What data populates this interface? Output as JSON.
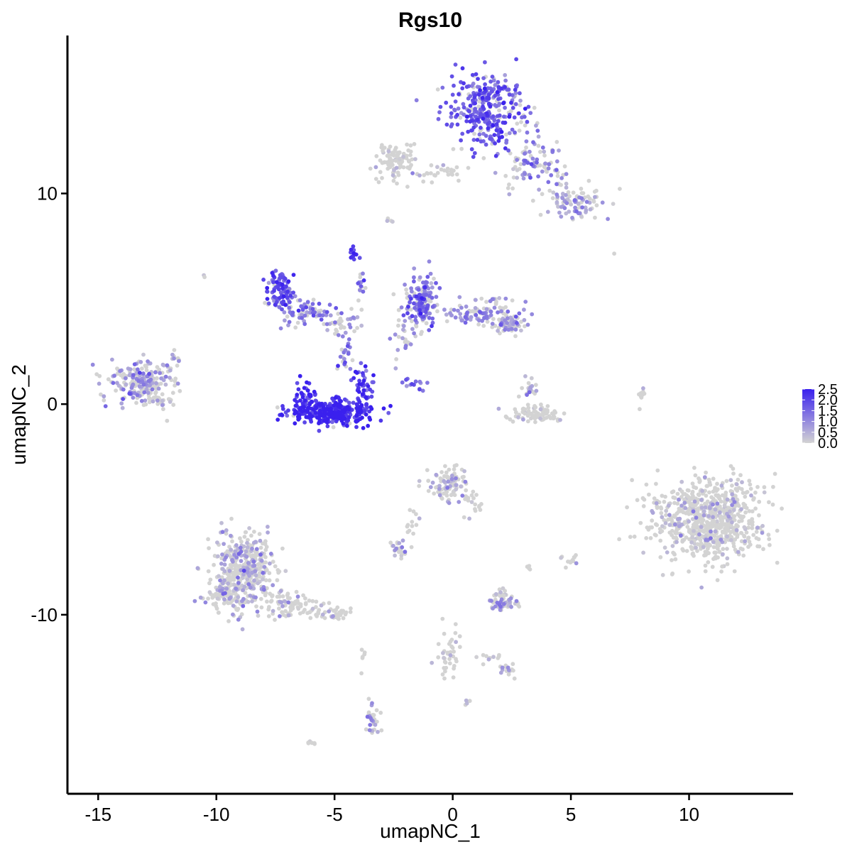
{
  "chart_data": {
    "type": "scatter",
    "title": "Rgs10",
    "xlabel": "umapNC_1",
    "ylabel": "umapNC_2",
    "xlim": [
      -16.3,
      14.4
    ],
    "ylim": [
      -18.5,
      17.5
    ],
    "x_ticks": [
      {
        "value": -15,
        "label": "-15"
      },
      {
        "value": -10,
        "label": "-10"
      },
      {
        "value": -5,
        "label": "-5"
      },
      {
        "value": 0,
        "label": "0"
      },
      {
        "value": 5,
        "label": "5"
      },
      {
        "value": 10,
        "label": "10"
      }
    ],
    "y_ticks": [
      {
        "value": 10,
        "label": "10"
      },
      {
        "value": 0,
        "label": "0"
      },
      {
        "value": -10,
        "label": "-10"
      }
    ],
    "grid": false,
    "legend_position": "right",
    "color_scale": {
      "low_color": "#d3d3d3",
      "high_color": "#3a20ee",
      "min": 0.0,
      "max": 2.5,
      "breaks": [
        {
          "value": 0.0,
          "label": "0.0"
        },
        {
          "value": 0.5,
          "label": "0.5"
        },
        {
          "value": 1.0,
          "label": "1.0"
        },
        {
          "value": 1.5,
          "label": "1.5"
        },
        {
          "value": 2.0,
          "label": "2.0"
        },
        {
          "value": 2.5,
          "label": "2.5"
        }
      ]
    },
    "clusters": [
      {
        "cx": 1.5,
        "cy": 14.0,
        "sx": 1.0,
        "sy": 1.2,
        "n": 320,
        "expr": 1.7
      },
      {
        "cx": 3.5,
        "cy": 11.5,
        "sx": 0.9,
        "sy": 0.8,
        "n": 90,
        "expr": 0.9
      },
      {
        "cx": 5.2,
        "cy": 9.5,
        "sx": 0.8,
        "sy": 0.6,
        "n": 90,
        "expr": 0.6
      },
      {
        "cx": -2.4,
        "cy": 11.5,
        "sx": 0.7,
        "sy": 0.6,
        "n": 90,
        "expr": 0.05
      },
      {
        "cx": -0.5,
        "cy": 11.0,
        "sx": 1.0,
        "sy": 0.3,
        "n": 30,
        "expr": 0.1
      },
      {
        "cx": -7.3,
        "cy": 5.4,
        "sx": 0.4,
        "sy": 0.6,
        "n": 90,
        "expr": 1.8
      },
      {
        "cx": -6.2,
        "cy": 4.4,
        "sx": 0.7,
        "sy": 0.45,
        "n": 70,
        "expr": 1.4
      },
      {
        "cx": -4.6,
        "cy": 3.8,
        "sx": 0.5,
        "sy": 0.3,
        "n": 35,
        "expr": 0.9
      },
      {
        "cx": -4.2,
        "cy": 7.2,
        "sx": 0.15,
        "sy": 0.3,
        "n": 12,
        "expr": 2.0
      },
      {
        "cx": -3.9,
        "cy": 5.6,
        "sx": 0.2,
        "sy": 0.6,
        "n": 15,
        "expr": 1.2
      },
      {
        "cx": -5.1,
        "cy": -0.4,
        "sx": 1.2,
        "sy": 0.4,
        "n": 300,
        "expr": 2.3
      },
      {
        "cx": -6.2,
        "cy": 0.3,
        "sx": 0.3,
        "sy": 0.5,
        "n": 45,
        "expr": 2.2
      },
      {
        "cx": -3.8,
        "cy": 0.9,
        "sx": 0.3,
        "sy": 0.6,
        "n": 45,
        "expr": 2.1
      },
      {
        "cx": -4.6,
        "cy": 2.3,
        "sx": 0.2,
        "sy": 0.5,
        "n": 20,
        "expr": 1.2
      },
      {
        "cx": -1.3,
        "cy": 4.9,
        "sx": 0.5,
        "sy": 0.9,
        "n": 170,
        "expr": 1.3
      },
      {
        "cx": 1.3,
        "cy": 4.3,
        "sx": 1.2,
        "sy": 0.4,
        "n": 110,
        "expr": 0.9
      },
      {
        "cx": 2.4,
        "cy": 3.8,
        "sx": 0.4,
        "sy": 0.3,
        "n": 50,
        "expr": 0.8
      },
      {
        "cx": -2.1,
        "cy": 3.2,
        "sx": 0.3,
        "sy": 0.8,
        "n": 25,
        "expr": 1.0
      },
      {
        "cx": -1.6,
        "cy": 1.0,
        "sx": 0.35,
        "sy": 0.2,
        "n": 14,
        "expr": 1.6
      },
      {
        "cx": -13.2,
        "cy": 1.0,
        "sx": 0.9,
        "sy": 0.7,
        "n": 220,
        "expr": 0.8
      },
      {
        "cx": -11.8,
        "cy": 2.2,
        "sx": 0.2,
        "sy": 0.4,
        "n": 12,
        "expr": 0.3
      },
      {
        "cx": -12.3,
        "cy": 0.1,
        "sx": 0.3,
        "sy": 0.2,
        "n": 14,
        "expr": 0.2
      },
      {
        "cx": 3.5,
        "cy": -0.5,
        "sx": 0.7,
        "sy": 0.3,
        "n": 80,
        "expr": 0.1
      },
      {
        "cx": 3.2,
        "cy": 0.7,
        "sx": 0.2,
        "sy": 0.4,
        "n": 20,
        "expr": 0.6
      },
      {
        "cx": 8.0,
        "cy": 0.4,
        "sx": 0.1,
        "sy": 0.4,
        "n": 10,
        "expr": 0.1
      },
      {
        "cx": 10.8,
        "cy": -5.5,
        "sx": 1.5,
        "sy": 1.3,
        "n": 760,
        "expr": 0.15
      },
      {
        "cx": -0.2,
        "cy": -3.8,
        "sx": 0.55,
        "sy": 0.6,
        "n": 90,
        "expr": 0.4
      },
      {
        "cx": 0.9,
        "cy": -4.6,
        "sx": 0.3,
        "sy": 0.4,
        "n": 18,
        "expr": 0.2
      },
      {
        "cx": -8.8,
        "cy": -7.8,
        "sx": 0.85,
        "sy": 1.2,
        "n": 380,
        "expr": 0.5
      },
      {
        "cx": -9.6,
        "cy": -9.0,
        "sx": 0.6,
        "sy": 0.5,
        "n": 80,
        "expr": 0.4
      },
      {
        "cx": -6.8,
        "cy": -9.5,
        "sx": 0.9,
        "sy": 0.4,
        "n": 80,
        "expr": 0.2
      },
      {
        "cx": -5.0,
        "cy": -10.0,
        "sx": 0.6,
        "sy": 0.2,
        "n": 35,
        "expr": 0.1
      },
      {
        "cx": -2.3,
        "cy": -6.9,
        "sx": 0.25,
        "sy": 0.2,
        "n": 25,
        "expr": 0.7
      },
      {
        "cx": -1.7,
        "cy": -5.7,
        "sx": 0.2,
        "sy": 0.4,
        "n": 12,
        "expr": 0.3
      },
      {
        "cx": 2.2,
        "cy": -9.5,
        "sx": 0.4,
        "sy": 0.2,
        "n": 55,
        "expr": 0.7
      },
      {
        "cx": 2.0,
        "cy": -9.1,
        "sx": 0.2,
        "sy": 0.2,
        "n": 15,
        "expr": 0.3
      },
      {
        "cx": -0.2,
        "cy": -11.8,
        "sx": 0.3,
        "sy": 1.0,
        "n": 40,
        "expr": 0.2
      },
      {
        "cx": 2.3,
        "cy": -12.6,
        "sx": 0.25,
        "sy": 0.2,
        "n": 15,
        "expr": 0.5
      },
      {
        "cx": 1.5,
        "cy": -12.0,
        "sx": 0.4,
        "sy": 0.15,
        "n": 10,
        "expr": 0.1
      },
      {
        "cx": -3.4,
        "cy": -14.9,
        "sx": 0.2,
        "sy": 0.5,
        "n": 35,
        "expr": 0.8
      },
      {
        "cx": 5.0,
        "cy": -7.4,
        "sx": 0.3,
        "sy": 0.2,
        "n": 12,
        "expr": 0.05
      },
      {
        "cx": 3.2,
        "cy": -7.8,
        "sx": 0.1,
        "sy": 0.1,
        "n": 4,
        "expr": 0.05
      },
      {
        "cx": -5.9,
        "cy": -16.1,
        "sx": 0.2,
        "sy": 0.1,
        "n": 6,
        "expr": 0.05
      },
      {
        "cx": 0.6,
        "cy": -14.2,
        "sx": 0.1,
        "sy": 0.1,
        "n": 4,
        "expr": 0.05
      },
      {
        "cx": -3.8,
        "cy": -12.2,
        "sx": 0.1,
        "sy": 0.4,
        "n": 6,
        "expr": 0.05
      },
      {
        "cx": -10.5,
        "cy": 6.1,
        "sx": 0.05,
        "sy": 0.05,
        "n": 2,
        "expr": 0.6
      },
      {
        "cx": -2.7,
        "cy": 8.8,
        "sx": 0.1,
        "sy": 0.1,
        "n": 4,
        "expr": 0.3
      },
      {
        "cx": 6.8,
        "cy": 7.1,
        "sx": 0.05,
        "sy": 0.05,
        "n": 1,
        "expr": 0.5
      }
    ]
  }
}
